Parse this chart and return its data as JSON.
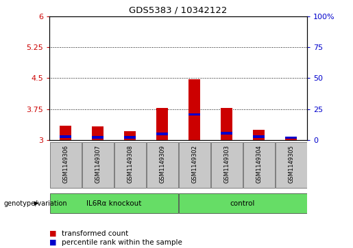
{
  "title": "GDS5383 / 10342122",
  "samples": [
    "GSM1149306",
    "GSM1149307",
    "GSM1149308",
    "GSM1149309",
    "GSM1149302",
    "GSM1149303",
    "GSM1149304",
    "GSM1149305"
  ],
  "red_values": [
    3.35,
    3.33,
    3.22,
    3.78,
    4.47,
    3.78,
    3.25,
    3.03
  ],
  "blue_values": [
    3.08,
    3.07,
    3.07,
    3.15,
    3.62,
    3.17,
    3.08,
    3.06
  ],
  "y_min": 3.0,
  "y_max": 6.0,
  "y_ticks_left": [
    3.0,
    3.75,
    4.5,
    5.25,
    6.0
  ],
  "y_ticks_left_labels": [
    "3",
    "3.75",
    "4.5",
    "5.25",
    "6"
  ],
  "y_ticks_right": [
    0,
    25,
    50,
    75,
    100
  ],
  "y_ticks_right_labels": [
    "0",
    "25",
    "50",
    "75",
    "100%"
  ],
  "group1_label": "IL6Rα knockout",
  "group2_label": "control",
  "group_color": "#66dd66",
  "group_row_label": "genotype/variation",
  "bar_width": 0.35,
  "blue_bar_height": 0.06,
  "sample_box_color": "#c8c8c8",
  "plot_bg": "#ffffff"
}
